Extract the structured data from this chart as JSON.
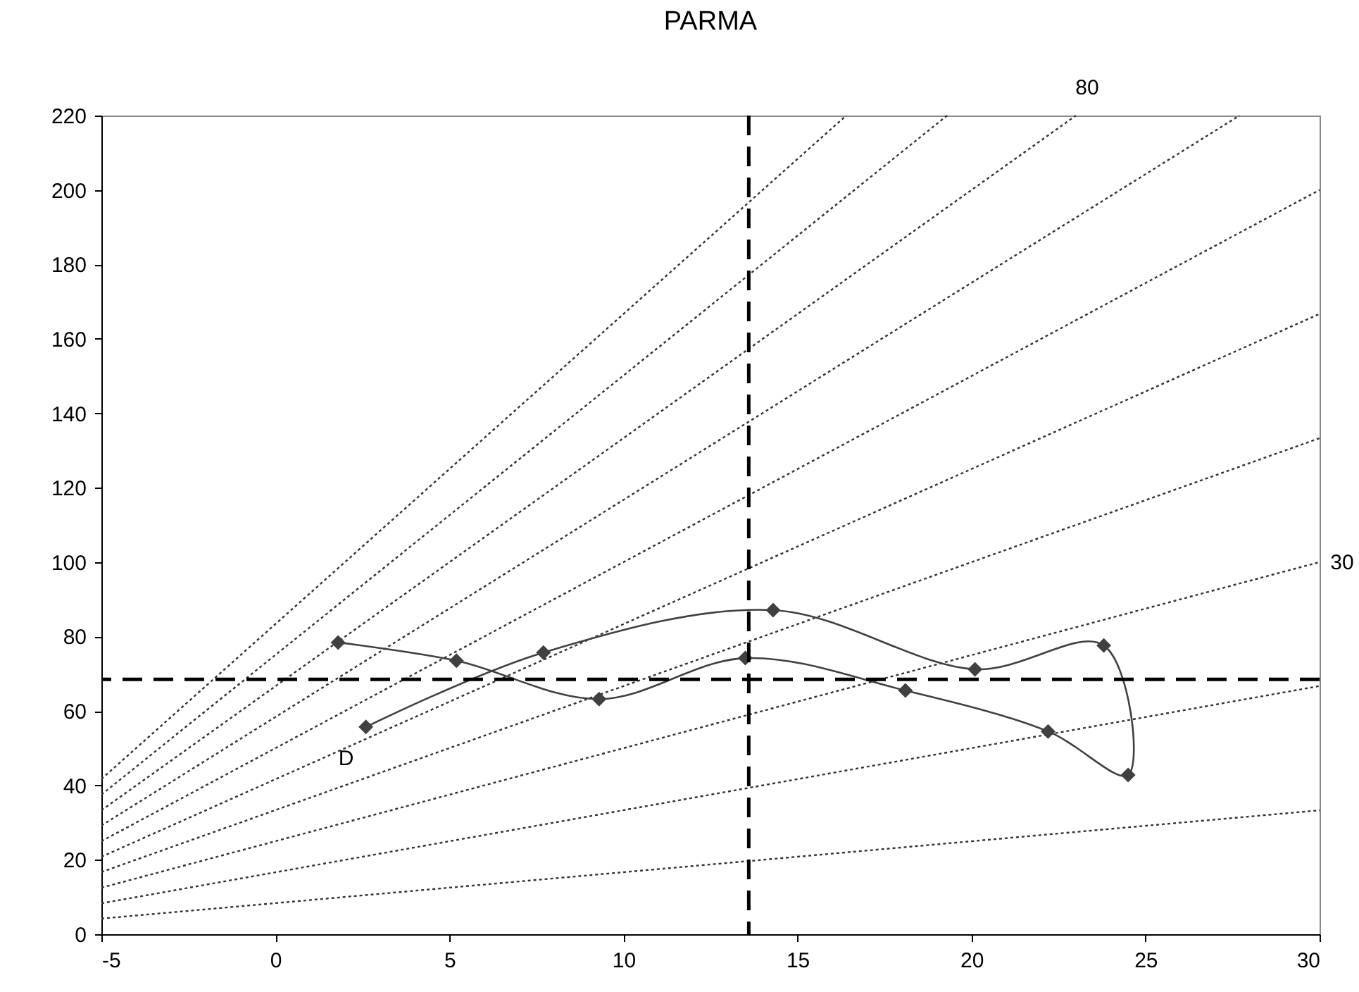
{
  "chart_data": {
    "type": "line",
    "title": "PARMA",
    "xlim": [
      -5,
      30
    ],
    "xticks": [
      -5,
      0,
      5,
      10,
      15,
      20,
      25,
      30
    ],
    "ylim": [
      0,
      220
    ],
    "yticks": [
      0,
      20,
      40,
      60,
      80,
      100,
      120,
      140,
      160,
      180,
      200,
      220
    ],
    "grid": false,
    "series": [
      {
        "color": "#333333",
        "line_style": "dotted",
        "marker": "none",
        "x": [
          -5,
          30
        ],
        "values": [
          4.2,
          33.3
        ]
      },
      {
        "color": "#333333",
        "line_style": "dotted",
        "marker": "none",
        "x": [
          -5,
          30
        ],
        "values": [
          8.3,
          66.7
        ]
      },
      {
        "color": "#333333",
        "line_style": "dotted",
        "marker": "none",
        "x": [
          -5,
          30
        ],
        "values": [
          12.5,
          100
        ]
      },
      {
        "color": "#333333",
        "line_style": "dotted",
        "marker": "none",
        "x": [
          -5,
          30
        ],
        "values": [
          16.7,
          133.3
        ]
      },
      {
        "color": "#333333",
        "line_style": "dotted",
        "marker": "none",
        "x": [
          -5,
          30
        ],
        "values": [
          20.8,
          166.7
        ]
      },
      {
        "color": "#333333",
        "line_style": "dotted",
        "marker": "none",
        "x": [
          -5,
          30
        ],
        "values": [
          25,
          200
        ]
      },
      {
        "color": "#333333",
        "line_style": "dotted",
        "marker": "none",
        "x": [
          -5,
          27.7
        ],
        "values": [
          29.2,
          220
        ]
      },
      {
        "color": "#333333",
        "line_style": "dotted",
        "marker": "none",
        "x": [
          -5,
          23
        ],
        "values": [
          33.3,
          220
        ]
      },
      {
        "color": "#333333",
        "line_style": "dotted",
        "marker": "none",
        "x": [
          -5,
          19.3
        ],
        "values": [
          37.5,
          220
        ]
      },
      {
        "color": "#333333",
        "line_style": "dotted",
        "marker": "none",
        "x": [
          -5,
          16.4
        ],
        "values": [
          41.7,
          220
        ]
      },
      {
        "color": "#404040",
        "line_style": "solid",
        "marker": "diamond",
        "x": [
          2.6,
          7.7,
          14.3,
          20.1,
          23.8,
          24.5,
          22.2,
          18.1,
          13.5,
          9.3,
          5.2,
          1.8
        ],
        "values": [
          55.7,
          75.7,
          87.1,
          71.2,
          77.6,
          42.8,
          54.5,
          65.5,
          74.2,
          63.2,
          73.5,
          78.4
        ]
      }
    ],
    "ref_lines": [
      {
        "axis": "x",
        "value": 13.6,
        "color": "#000000",
        "line_style": "dashed"
      },
      {
        "axis": "y",
        "value": 68.5,
        "color": "#000000",
        "line_style": "dashed"
      }
    ],
    "annotations": [
      {
        "text": "D",
        "x": 2.6,
        "y": 55.7
      },
      {
        "text": "30",
        "x": 30,
        "y": 100
      },
      {
        "text": "80",
        "x": 23,
        "y": 220
      }
    ]
  }
}
